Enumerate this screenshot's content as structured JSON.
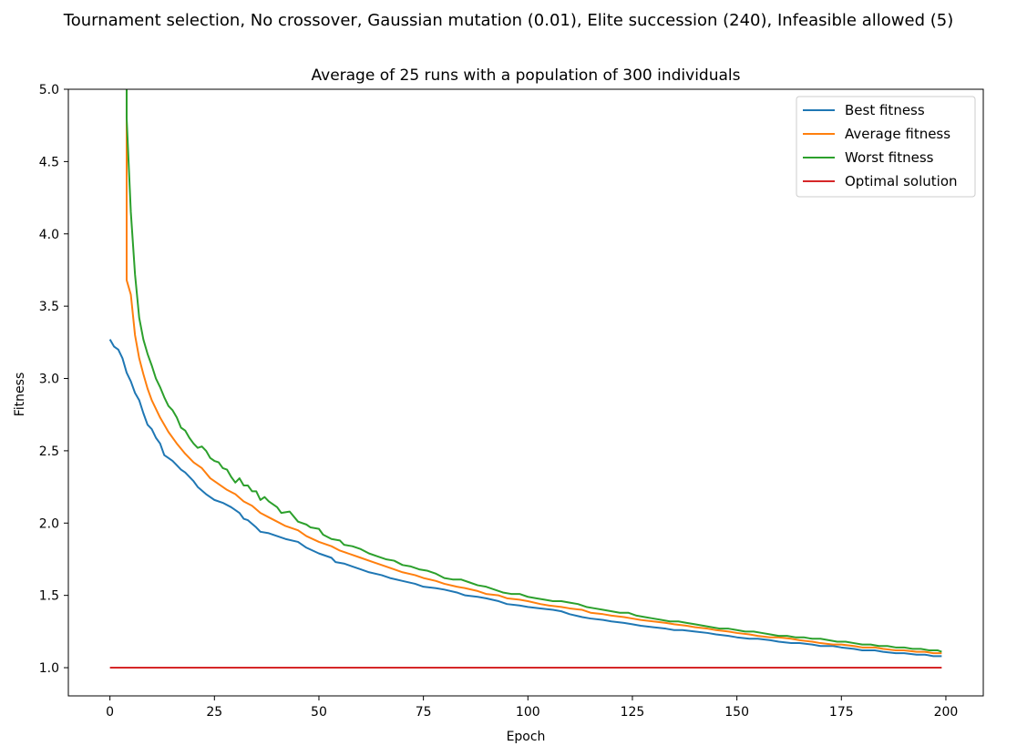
{
  "chart_data": {
    "type": "line",
    "suptitle": "Tournament selection, No crossover, Gaussian mutation (0.01), Elite succession (240), Infeasible allowed (5)",
    "title": "Average of 25 runs with a population of 300 individuals",
    "xlabel": "Epoch",
    "ylabel": "Fitness",
    "xlim": [
      -9.95,
      208.95
    ],
    "ylim": [
      0.805,
      5.0
    ],
    "xticks": [
      0,
      25,
      50,
      75,
      100,
      125,
      150,
      175,
      200
    ],
    "yticks": [
      1.0,
      1.5,
      2.0,
      2.5,
      3.0,
      3.5,
      4.0,
      4.5,
      5.0
    ],
    "xtick_labels": [
      "0",
      "25",
      "50",
      "75",
      "100",
      "125",
      "150",
      "175",
      "200"
    ],
    "ytick_labels": [
      "1.0",
      "1.5",
      "2.0",
      "2.5",
      "3.0",
      "3.5",
      "4.0",
      "4.5",
      "5.0"
    ],
    "grid": false,
    "legend_position": "upper right",
    "series": [
      {
        "name": "Best fitness",
        "color": "#1f77b4",
        "points": [
          [
            0,
            3.27
          ],
          [
            1,
            3.22
          ],
          [
            2,
            3.2
          ],
          [
            3,
            3.14
          ],
          [
            4,
            3.04
          ],
          [
            5,
            2.98
          ],
          [
            6,
            2.9
          ],
          [
            7,
            2.85
          ],
          [
            8,
            2.76
          ],
          [
            9,
            2.68
          ],
          [
            10,
            2.65
          ],
          [
            11,
            2.59
          ],
          [
            12,
            2.55
          ],
          [
            13,
            2.47
          ],
          [
            14,
            2.45
          ],
          [
            15,
            2.43
          ],
          [
            17,
            2.37
          ],
          [
            18,
            2.35
          ],
          [
            20,
            2.29
          ],
          [
            21,
            2.25
          ],
          [
            23,
            2.2
          ],
          [
            25,
            2.16
          ],
          [
            27,
            2.14
          ],
          [
            29,
            2.11
          ],
          [
            31,
            2.07
          ],
          [
            32,
            2.03
          ],
          [
            33,
            2.02
          ],
          [
            35,
            1.97
          ],
          [
            36,
            1.94
          ],
          [
            38,
            1.93
          ],
          [
            40,
            1.91
          ],
          [
            42,
            1.89
          ],
          [
            45,
            1.87
          ],
          [
            47,
            1.83
          ],
          [
            50,
            1.79
          ],
          [
            53,
            1.76
          ],
          [
            54,
            1.73
          ],
          [
            56,
            1.72
          ],
          [
            58,
            1.7
          ],
          [
            60,
            1.68
          ],
          [
            62,
            1.66
          ],
          [
            65,
            1.64
          ],
          [
            67,
            1.62
          ],
          [
            70,
            1.6
          ],
          [
            73,
            1.58
          ],
          [
            75,
            1.56
          ],
          [
            78,
            1.55
          ],
          [
            80,
            1.54
          ],
          [
            83,
            1.52
          ],
          [
            85,
            1.5
          ],
          [
            88,
            1.49
          ],
          [
            90,
            1.48
          ],
          [
            93,
            1.46
          ],
          [
            95,
            1.44
          ],
          [
            98,
            1.43
          ],
          [
            100,
            1.42
          ],
          [
            103,
            1.41
          ],
          [
            106,
            1.4
          ],
          [
            108,
            1.39
          ],
          [
            110,
            1.37
          ],
          [
            113,
            1.35
          ],
          [
            115,
            1.34
          ],
          [
            118,
            1.33
          ],
          [
            120,
            1.32
          ],
          [
            123,
            1.31
          ],
          [
            125,
            1.3
          ],
          [
            127,
            1.29
          ],
          [
            130,
            1.28
          ],
          [
            133,
            1.27
          ],
          [
            135,
            1.26
          ],
          [
            137,
            1.26
          ],
          [
            140,
            1.25
          ],
          [
            143,
            1.24
          ],
          [
            145,
            1.23
          ],
          [
            148,
            1.22
          ],
          [
            150,
            1.21
          ],
          [
            153,
            1.2
          ],
          [
            155,
            1.2
          ],
          [
            158,
            1.19
          ],
          [
            160,
            1.18
          ],
          [
            163,
            1.17
          ],
          [
            165,
            1.17
          ],
          [
            168,
            1.16
          ],
          [
            170,
            1.15
          ],
          [
            173,
            1.15
          ],
          [
            175,
            1.14
          ],
          [
            178,
            1.13
          ],
          [
            180,
            1.12
          ],
          [
            183,
            1.12
          ],
          [
            185,
            1.11
          ],
          [
            188,
            1.1
          ],
          [
            190,
            1.1
          ],
          [
            193,
            1.09
          ],
          [
            195,
            1.09
          ],
          [
            197,
            1.08
          ],
          [
            199,
            1.08
          ]
        ]
      },
      {
        "name": "Average fitness",
        "color": "#ff7f0e",
        "points": [
          [
            4,
            5.0
          ],
          [
            4,
            3.68
          ],
          [
            5,
            3.58
          ],
          [
            6,
            3.3
          ],
          [
            7,
            3.14
          ],
          [
            8,
            3.03
          ],
          [
            9,
            2.93
          ],
          [
            10,
            2.85
          ],
          [
            12,
            2.73
          ],
          [
            14,
            2.63
          ],
          [
            16,
            2.55
          ],
          [
            18,
            2.48
          ],
          [
            20,
            2.42
          ],
          [
            22,
            2.38
          ],
          [
            24,
            2.31
          ],
          [
            26,
            2.27
          ],
          [
            28,
            2.23
          ],
          [
            30,
            2.2
          ],
          [
            32,
            2.15
          ],
          [
            34,
            2.12
          ],
          [
            36,
            2.07
          ],
          [
            38,
            2.04
          ],
          [
            40,
            2.01
          ],
          [
            42,
            1.98
          ],
          [
            45,
            1.95
          ],
          [
            47,
            1.91
          ],
          [
            50,
            1.87
          ],
          [
            53,
            1.84
          ],
          [
            55,
            1.81
          ],
          [
            58,
            1.78
          ],
          [
            60,
            1.76
          ],
          [
            63,
            1.73
          ],
          [
            65,
            1.71
          ],
          [
            68,
            1.68
          ],
          [
            70,
            1.66
          ],
          [
            73,
            1.64
          ],
          [
            75,
            1.62
          ],
          [
            78,
            1.6
          ],
          [
            80,
            1.58
          ],
          [
            83,
            1.56
          ],
          [
            85,
            1.55
          ],
          [
            88,
            1.53
          ],
          [
            90,
            1.51
          ],
          [
            93,
            1.5
          ],
          [
            95,
            1.48
          ],
          [
            98,
            1.47
          ],
          [
            100,
            1.46
          ],
          [
            103,
            1.44
          ],
          [
            105,
            1.43
          ],
          [
            108,
            1.42
          ],
          [
            110,
            1.41
          ],
          [
            113,
            1.4
          ],
          [
            115,
            1.38
          ],
          [
            118,
            1.37
          ],
          [
            120,
            1.36
          ],
          [
            123,
            1.35
          ],
          [
            125,
            1.34
          ],
          [
            127,
            1.33
          ],
          [
            130,
            1.32
          ],
          [
            133,
            1.31
          ],
          [
            135,
            1.3
          ],
          [
            138,
            1.29
          ],
          [
            140,
            1.28
          ],
          [
            143,
            1.27
          ],
          [
            145,
            1.26
          ],
          [
            148,
            1.25
          ],
          [
            150,
            1.24
          ],
          [
            153,
            1.23
          ],
          [
            155,
            1.22
          ],
          [
            158,
            1.21
          ],
          [
            160,
            1.21
          ],
          [
            163,
            1.2
          ],
          [
            165,
            1.19
          ],
          [
            168,
            1.18
          ],
          [
            170,
            1.17
          ],
          [
            173,
            1.16
          ],
          [
            175,
            1.16
          ],
          [
            178,
            1.15
          ],
          [
            180,
            1.14
          ],
          [
            183,
            1.14
          ],
          [
            185,
            1.13
          ],
          [
            188,
            1.12
          ],
          [
            190,
            1.12
          ],
          [
            193,
            1.11
          ],
          [
            195,
            1.11
          ],
          [
            197,
            1.1
          ],
          [
            199,
            1.1
          ]
        ]
      },
      {
        "name": "Worst fitness",
        "color": "#2ca02c",
        "points": [
          [
            4,
            5.0
          ],
          [
            4,
            4.8
          ],
          [
            5,
            4.15
          ],
          [
            6,
            3.72
          ],
          [
            7,
            3.42
          ],
          [
            8,
            3.27
          ],
          [
            9,
            3.17
          ],
          [
            10,
            3.09
          ],
          [
            11,
            3.0
          ],
          [
            12,
            2.94
          ],
          [
            13,
            2.87
          ],
          [
            14,
            2.81
          ],
          [
            15,
            2.78
          ],
          [
            16,
            2.73
          ],
          [
            17,
            2.66
          ],
          [
            18,
            2.64
          ],
          [
            19,
            2.59
          ],
          [
            20,
            2.55
          ],
          [
            21,
            2.52
          ],
          [
            22,
            2.53
          ],
          [
            23,
            2.5
          ],
          [
            24,
            2.45
          ],
          [
            25,
            2.43
          ],
          [
            26,
            2.42
          ],
          [
            27,
            2.38
          ],
          [
            28,
            2.37
          ],
          [
            29,
            2.32
          ],
          [
            30,
            2.28
          ],
          [
            31,
            2.31
          ],
          [
            32,
            2.26
          ],
          [
            33,
            2.26
          ],
          [
            34,
            2.22
          ],
          [
            35,
            2.22
          ],
          [
            36,
            2.16
          ],
          [
            37,
            2.18
          ],
          [
            38,
            2.15
          ],
          [
            40,
            2.11
          ],
          [
            41,
            2.07
          ],
          [
            43,
            2.08
          ],
          [
            45,
            2.01
          ],
          [
            47,
            1.99
          ],
          [
            48,
            1.97
          ],
          [
            50,
            1.96
          ],
          [
            51,
            1.92
          ],
          [
            53,
            1.89
          ],
          [
            55,
            1.88
          ],
          [
            56,
            1.85
          ],
          [
            58,
            1.84
          ],
          [
            60,
            1.82
          ],
          [
            62,
            1.79
          ],
          [
            64,
            1.77
          ],
          [
            66,
            1.75
          ],
          [
            68,
            1.74
          ],
          [
            70,
            1.71
          ],
          [
            72,
            1.7
          ],
          [
            74,
            1.68
          ],
          [
            76,
            1.67
          ],
          [
            78,
            1.65
          ],
          [
            80,
            1.62
          ],
          [
            82,
            1.61
          ],
          [
            84,
            1.61
          ],
          [
            86,
            1.59
          ],
          [
            88,
            1.57
          ],
          [
            90,
            1.56
          ],
          [
            92,
            1.54
          ],
          [
            94,
            1.52
          ],
          [
            96,
            1.51
          ],
          [
            98,
            1.51
          ],
          [
            100,
            1.49
          ],
          [
            102,
            1.48
          ],
          [
            104,
            1.47
          ],
          [
            106,
            1.46
          ],
          [
            108,
            1.46
          ],
          [
            110,
            1.45
          ],
          [
            112,
            1.44
          ],
          [
            114,
            1.42
          ],
          [
            116,
            1.41
          ],
          [
            118,
            1.4
          ],
          [
            120,
            1.39
          ],
          [
            122,
            1.38
          ],
          [
            124,
            1.38
          ],
          [
            126,
            1.36
          ],
          [
            128,
            1.35
          ],
          [
            130,
            1.34
          ],
          [
            132,
            1.33
          ],
          [
            134,
            1.32
          ],
          [
            136,
            1.32
          ],
          [
            138,
            1.31
          ],
          [
            140,
            1.3
          ],
          [
            142,
            1.29
          ],
          [
            144,
            1.28
          ],
          [
            146,
            1.27
          ],
          [
            148,
            1.27
          ],
          [
            150,
            1.26
          ],
          [
            152,
            1.25
          ],
          [
            154,
            1.25
          ],
          [
            156,
            1.24
          ],
          [
            158,
            1.23
          ],
          [
            160,
            1.22
          ],
          [
            162,
            1.22
          ],
          [
            164,
            1.21
          ],
          [
            166,
            1.21
          ],
          [
            168,
            1.2
          ],
          [
            170,
            1.2
          ],
          [
            172,
            1.19
          ],
          [
            174,
            1.18
          ],
          [
            176,
            1.18
          ],
          [
            178,
            1.17
          ],
          [
            180,
            1.16
          ],
          [
            182,
            1.16
          ],
          [
            184,
            1.15
          ],
          [
            186,
            1.15
          ],
          [
            188,
            1.14
          ],
          [
            190,
            1.14
          ],
          [
            192,
            1.13
          ],
          [
            194,
            1.13
          ],
          [
            196,
            1.12
          ],
          [
            198,
            1.12
          ],
          [
            199,
            1.11
          ]
        ]
      },
      {
        "name": "Optimal solution",
        "color": "#d62728",
        "points": [
          [
            0,
            1.0
          ],
          [
            199,
            1.0
          ]
        ]
      }
    ]
  }
}
